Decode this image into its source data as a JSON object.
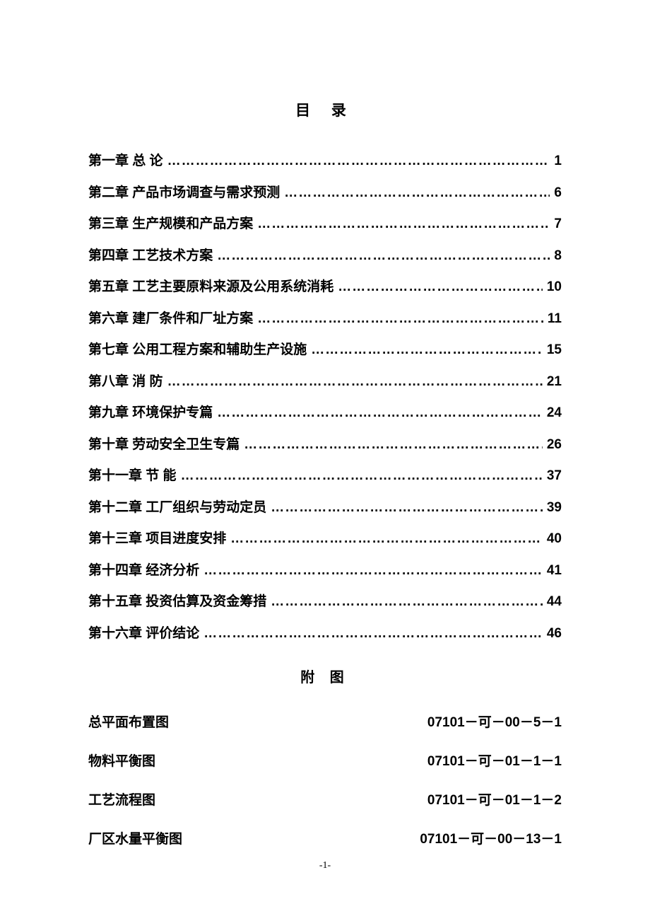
{
  "title": "目 录",
  "toc": [
    {
      "label": "第一章 总 论",
      "page": "1"
    },
    {
      "label": "第二章 产品市场调查与需求预测",
      "page": "6"
    },
    {
      "label": "第三章 生产规模和产品方案",
      "page": "7"
    },
    {
      "label": "第四章 工艺技术方案",
      "page": "8"
    },
    {
      "label": "第五章 工艺主要原料来源及公用系统消耗",
      "page": "10"
    },
    {
      "label": "第六章 建厂条件和厂址方案",
      "page": "11"
    },
    {
      "label": "第七章 公用工程方案和辅助生产设施",
      "page": "15"
    },
    {
      "label": "第八章  消  防",
      "page": "21"
    },
    {
      "label": "第九章 环境保护专篇",
      "page": "24"
    },
    {
      "label": "第十章  劳动安全卫生专篇",
      "page": "26"
    },
    {
      "label": "第十一章  节  能",
      "page": "37"
    },
    {
      "label": "第十二章 工厂组织与劳动定员",
      "page": "39"
    },
    {
      "label": "第十三章 项目进度安排",
      "page": "40"
    },
    {
      "label": "第十四章  经济分析",
      "page": "41"
    },
    {
      "label": "第十五章  投资估算及资金筹措",
      "page": "44"
    },
    {
      "label": "第十六章  评价结论",
      "page": "46"
    }
  ],
  "appendix_title": "附 图",
  "appendix": [
    {
      "label": "总平面布置图",
      "code": "07101－可－00－5－1"
    },
    {
      "label": "物料平衡图",
      "code": "07101－可－01－1－1"
    },
    {
      "label": "工艺流程图",
      "code": "07101－可－01－1－2"
    },
    {
      "label": "厂区水量平衡图",
      "code": "07101－可－00－13－1"
    }
  ],
  "page_number": "-1-",
  "dots_fill": "…………………………………………………………………………………………………………"
}
